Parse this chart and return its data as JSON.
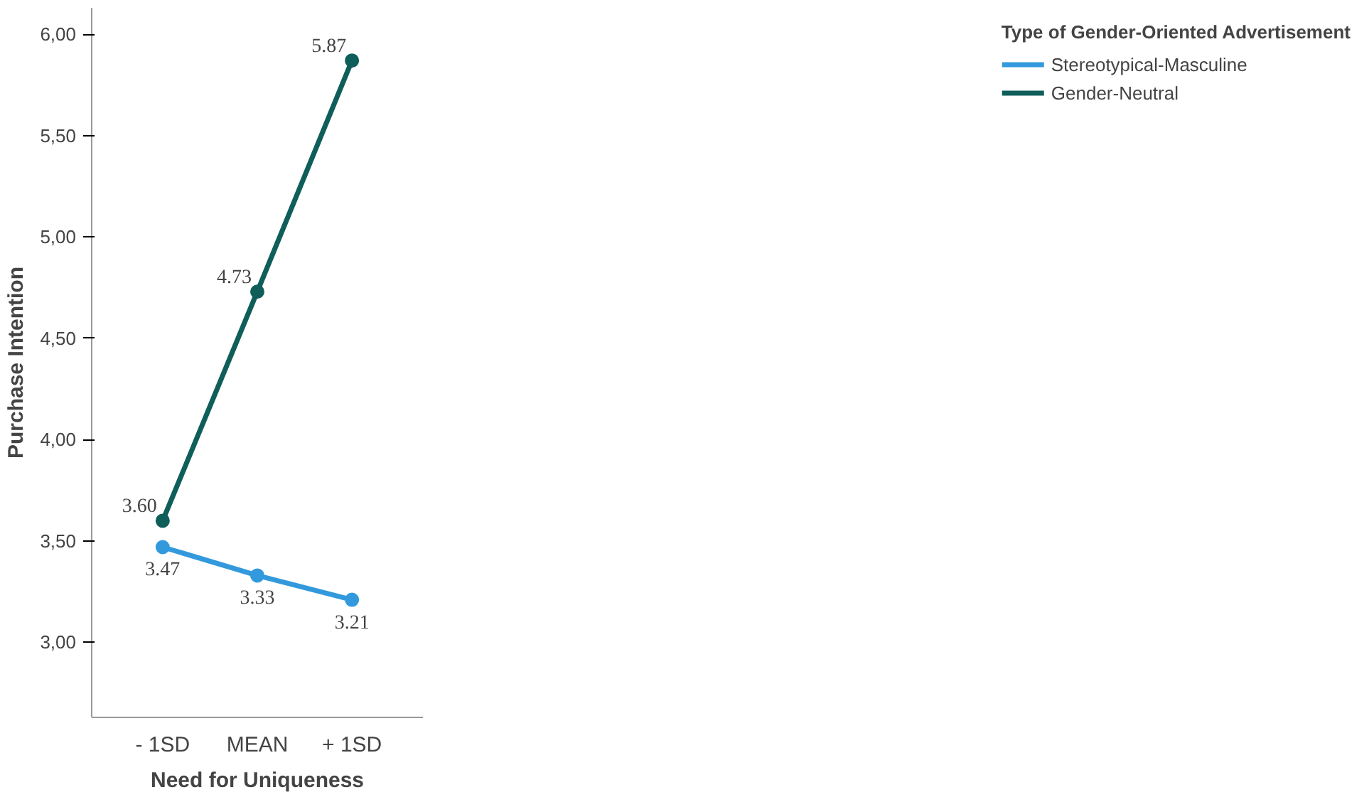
{
  "chart_data": {
    "type": "line",
    "xlabel": "Need for Uniqueness",
    "ylabel": "Purchase Intention",
    "legend_title": "Type of Gender-Oriented Advertisement",
    "categories": [
      "- 1SD",
      "MEAN",
      "+ 1SD"
    ],
    "series": [
      {
        "name": "Stereotypical-Masculine",
        "color": "#3399dd",
        "values": [
          3.47,
          3.33,
          3.21
        ],
        "value_labels": [
          "3.47",
          "3.33",
          "3.21"
        ]
      },
      {
        "name": "Gender-Neutral",
        "color": "#0f5e5a",
        "values": [
          3.6,
          4.73,
          5.87
        ],
        "value_labels": [
          "3.60",
          "4.73",
          "5.87"
        ]
      }
    ],
    "ylim": [
      2.63,
      6.13
    ],
    "yticks": [
      {
        "value": 3,
        "label": "3,00"
      },
      {
        "value": 3.5,
        "label": "3,50"
      },
      {
        "value": 4,
        "label": "4,00"
      },
      {
        "value": 4.5,
        "label": "4,50"
      },
      {
        "value": 5,
        "label": "5,00"
      },
      {
        "value": 5.5,
        "label": "5,50"
      },
      {
        "value": 6,
        "label": "6,00"
      }
    ],
    "grid": false,
    "legend": "right",
    "marker": "circle",
    "line_style": "solid"
  }
}
